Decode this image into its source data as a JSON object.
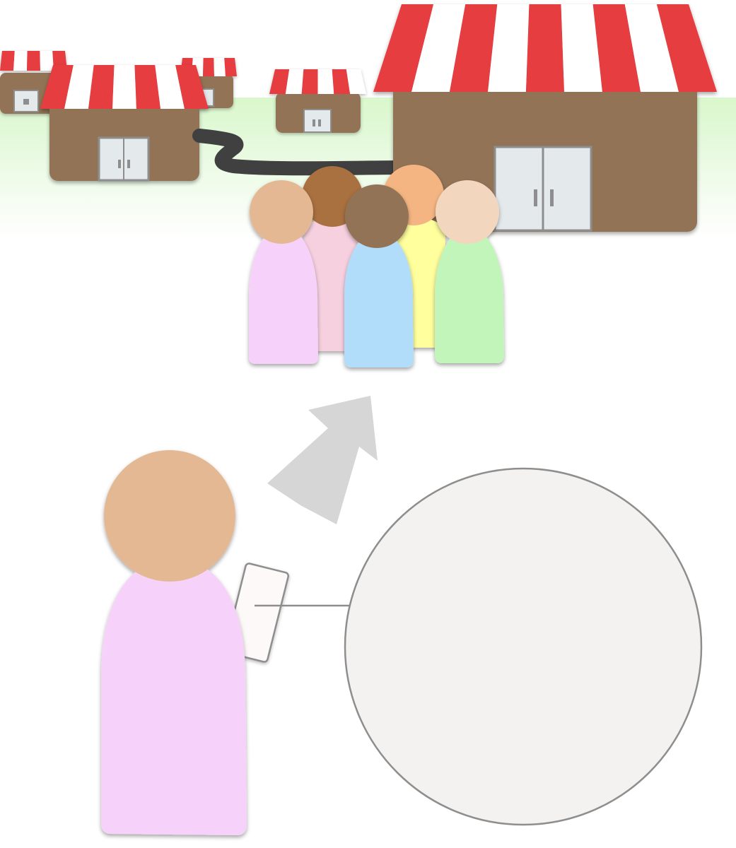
{
  "colors": {
    "background": "#ffffff",
    "grass": "#d9f7cc",
    "awning_red": "#e63c3f",
    "awning_white": "#ffffff",
    "shop_wall": "#927356",
    "door": "#e4e9ec",
    "door_frame": "#8e8e8e",
    "road": "#404040",
    "arrow": "#d6d6d6",
    "bubble_fill": "#f3f2f1",
    "bubble_stroke": "#8e8e8e",
    "phone_fill": "#fdf9f8",
    "phone_stroke": "#8e8e8e"
  },
  "crowd": [
    {
      "name": "person-brown-pink",
      "head": "#a96f3f",
      "body": "#f7d0e0"
    },
    {
      "name": "person-orange-yellow",
      "head": "#f4b583",
      "body": "#ffff9e"
    },
    {
      "name": "person-tan-lilac",
      "head": "#e4b893",
      "body": "#f6d2fb"
    },
    {
      "name": "person-dark-blue",
      "head": "#927356",
      "body": "#b2ddfa"
    },
    {
      "name": "person-light-green",
      "head": "#f2d6be",
      "body": "#c1f5b9"
    }
  ],
  "observer": {
    "head": "#e4b893",
    "body": "#f6d2fb"
  },
  "speech_bubble": {
    "text": ""
  }
}
